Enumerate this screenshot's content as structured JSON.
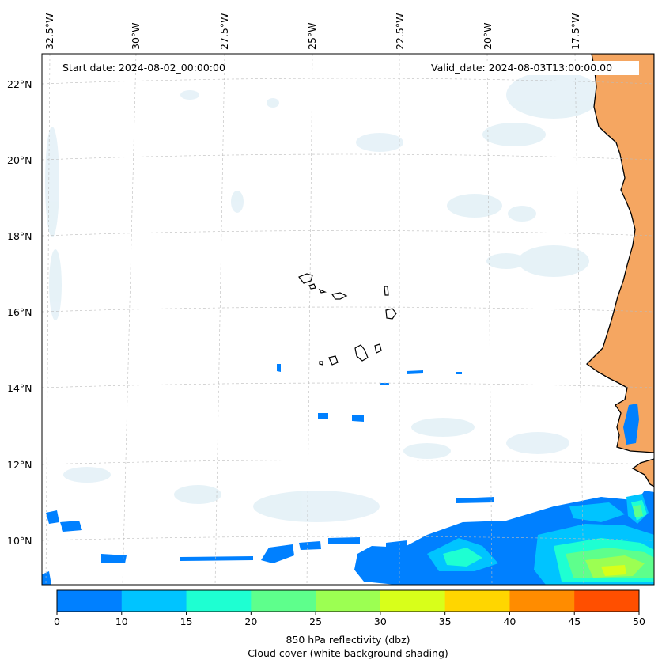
{
  "map": {
    "start_date_label": "Start date: 2024-08-02_00:00:00",
    "valid_date_label": "Valid_date: 2024-08-03T13:00:00.00",
    "lon_labels": [
      "32.5°W",
      "30°W",
      "27.5°W",
      "25°W",
      "22.5°W",
      "20°W",
      "17.5°W"
    ],
    "lat_labels": [
      "22°N",
      "20°N",
      "18°N",
      "16°N",
      "14°N",
      "12°N",
      "10°N"
    ],
    "land_color": "#f5a661"
  },
  "colorbar": {
    "ticks": [
      "0",
      "10",
      "15",
      "20",
      "25",
      "30",
      "35",
      "40",
      "45",
      "50"
    ],
    "colors": [
      "#0080ff",
      "#00c4ff",
      "#1effd2",
      "#5eff8c",
      "#9cff52",
      "#d8ff1a",
      "#ffd600",
      "#ff8c00",
      "#ff4f00"
    ],
    "label_line1": "850 hPa reflectivity (dbz)",
    "label_line2": "Cloud cover (white background shading)"
  }
}
